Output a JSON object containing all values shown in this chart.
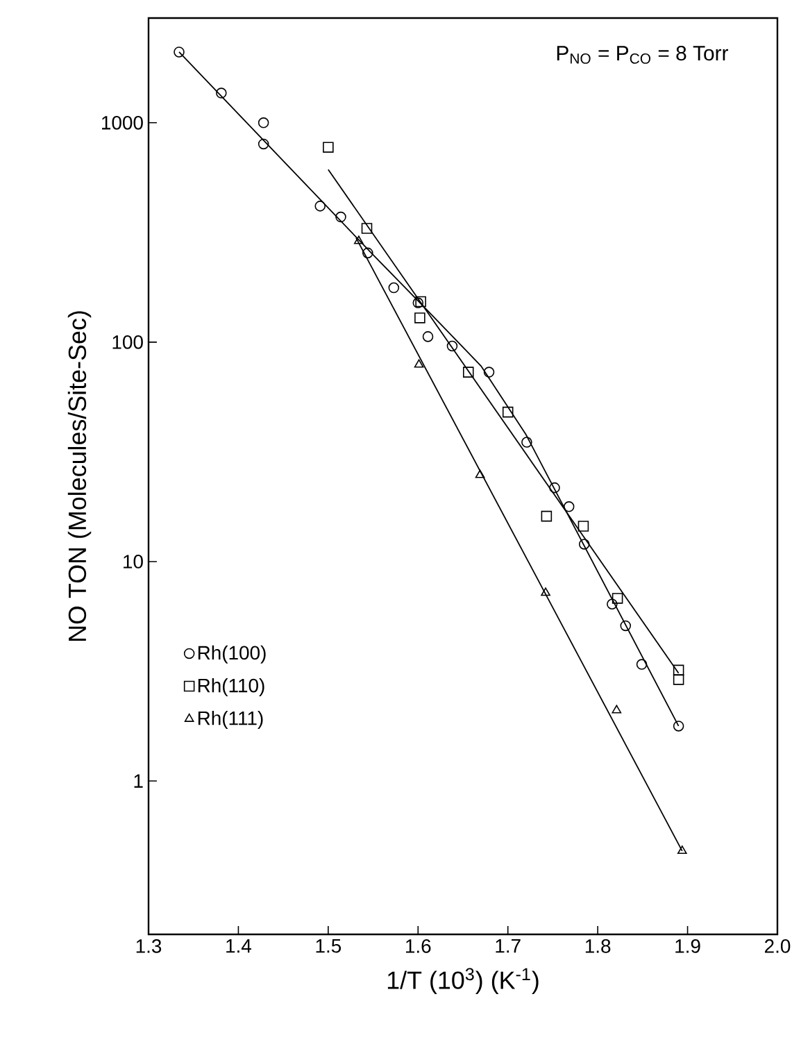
{
  "chart_data": {
    "type": "scatter",
    "xlabel": "1/T (10$^{3}$) (K$^{-1}$)",
    "ylabel": "NO TON (Molecules/Site-Sec)",
    "annotations": [
      "P$_{NO}$ = P$_{CO}$ = 8 Torr"
    ],
    "xlim": [
      1.3,
      2.0
    ],
    "xticks": [
      1.3,
      1.4,
      1.5,
      1.6,
      1.7,
      1.8,
      1.9,
      {
        "value": 2,
        "label": "2.0"
      }
    ],
    "ylim": [
      0.2,
      3000
    ],
    "yticks": [
      1,
      10,
      100,
      1000
    ],
    "log": "y",
    "grid": false,
    "legend": "bottom left",
    "series": [
      {
        "name": "Rh(100)",
        "marker": "circle",
        "color": "#000000",
        "x": [
          1.334,
          1.381,
          1.428,
          1.428,
          1.491,
          1.514,
          1.544,
          1.573,
          1.6,
          1.611,
          1.638,
          1.679,
          1.721,
          1.752,
          1.768,
          1.785,
          1.816,
          1.831,
          1.849,
          1.89
        ],
        "values": [
          2100,
          1365,
          1000,
          800,
          417,
          372,
          255,
          177,
          151,
          106,
          96,
          73,
          35,
          21.7,
          17.8,
          12,
          6.4,
          5.1,
          3.4,
          1.78
        ]
      },
      {
        "name": "Rh(110)",
        "marker": "square",
        "color": "#000000",
        "x": [
          1.5,
          1.543,
          1.603,
          1.602,
          1.656,
          1.7,
          1.743,
          1.784,
          1.822,
          1.89,
          1.89
        ],
        "values": [
          773,
          330,
          153,
          129,
          73,
          48,
          16.1,
          14.5,
          6.8,
          3.2,
          2.9
        ]
      },
      {
        "name": "Rh(111)",
        "marker": "triangle",
        "color": "#000000",
        "x": [
          1.534,
          1.601,
          1.669,
          1.742,
          1.821,
          1.894
        ],
        "values": [
          289,
          79,
          24.8,
          7.2,
          2.1,
          0.48
        ]
      },
      {
        "type": "line",
        "marker": "none",
        "color": "#000000",
        "x": [
          1.334,
          1.55,
          1.61,
          1.67,
          1.72,
          1.89
        ],
        "values": [
          2100,
          250,
          140,
          78,
          38,
          1.78
        ]
      },
      {
        "type": "line",
        "marker": "none",
        "color": "#000000",
        "x": [
          1.5,
          1.89
        ],
        "values": [
          612,
          3.1
        ]
      },
      {
        "type": "line",
        "marker": "none",
        "color": "#000000",
        "x": [
          1.531,
          1.894
        ],
        "values": [
          299,
          0.48
        ]
      }
    ]
  }
}
